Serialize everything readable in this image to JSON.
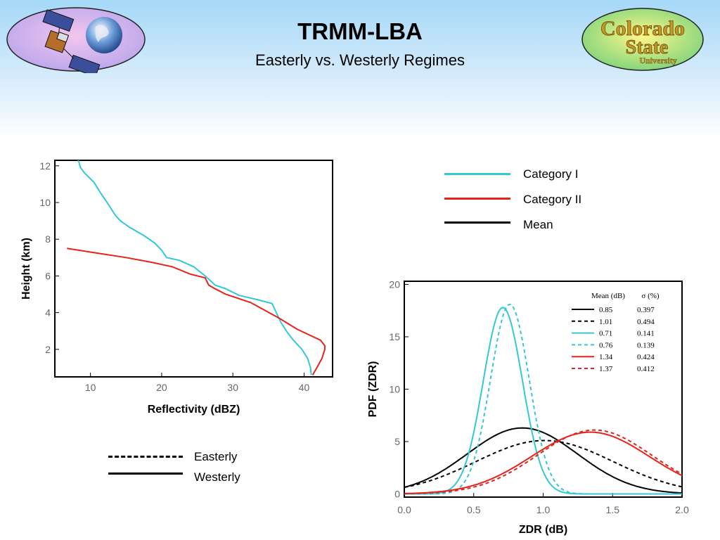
{
  "header": {
    "title": "TRMM-LBA",
    "subtitle": "Easterly vs. Westerly Regimes"
  },
  "logos": {
    "left_icon": "satellite-earth-logo",
    "right_icon": "colorado-state-logo",
    "right_text_line1": "Colorado",
    "right_text_line2": "State",
    "right_text_line3": "University"
  },
  "colors": {
    "category_i": "#33c8d6",
    "category_ii": "#e5231b",
    "mean": "#000000"
  },
  "category_legend": {
    "items": [
      {
        "label": "Category I",
        "color": "#33c8d6"
      },
      {
        "label": "Category II",
        "color": "#e5231b"
      },
      {
        "label": "Mean",
        "color": "#000000"
      }
    ]
  },
  "regime_legend": {
    "easterly": "Easterly",
    "westerly": "Westerly"
  },
  "chart_data": [
    {
      "type": "line",
      "xlabel": "Reflectivity (dBZ)",
      "ylabel": "Height (km)",
      "xlim": [
        5,
        44
      ],
      "ylim": [
        0.5,
        12.3
      ],
      "xticks": [
        10,
        20,
        30,
        40
      ],
      "yticks": [
        2,
        4,
        6,
        8,
        10,
        12
      ],
      "series": [
        {
          "color": "#33c8d6",
          "points": [
            [
              8.3,
              12.3
            ],
            [
              8.6,
              11.9
            ],
            [
              9.2,
              11.6
            ],
            [
              10.5,
              11.1
            ],
            [
              11.3,
              10.6
            ],
            [
              12.5,
              9.9
            ],
            [
              13.5,
              9.3
            ],
            [
              14.2,
              9.0
            ],
            [
              15.5,
              8.65
            ],
            [
              17.5,
              8.2
            ],
            [
              19.0,
              7.8
            ],
            [
              20.0,
              7.4
            ],
            [
              20.7,
              7.0
            ],
            [
              22.5,
              6.85
            ],
            [
              24.5,
              6.5
            ],
            [
              26.1,
              6.0
            ],
            [
              27.5,
              5.5
            ],
            [
              29.0,
              5.3
            ],
            [
              30.8,
              4.95
            ],
            [
              33.5,
              4.7
            ],
            [
              35.5,
              4.5
            ],
            [
              36.7,
              3.5
            ],
            [
              37.5,
              3.0
            ],
            [
              38.5,
              2.5
            ],
            [
              39.7,
              2.0
            ],
            [
              40.5,
              1.5
            ],
            [
              40.9,
              1.0
            ],
            [
              41.0,
              0.6
            ]
          ]
        },
        {
          "color": "#e5231b",
          "points": [
            [
              6.7,
              7.5
            ],
            [
              10,
              7.3
            ],
            [
              15,
              7.0
            ],
            [
              18.5,
              6.75
            ],
            [
              21.5,
              6.5
            ],
            [
              24.0,
              6.1
            ],
            [
              26.1,
              5.9
            ],
            [
              26.6,
              5.5
            ],
            [
              27.5,
              5.3
            ],
            [
              29.0,
              5.0
            ],
            [
              32.5,
              4.55
            ],
            [
              36.5,
              3.7
            ],
            [
              39.0,
              3.1
            ],
            [
              42.3,
              2.5
            ],
            [
              42.9,
              2.2
            ],
            [
              42.9,
              2.0
            ],
            [
              42.5,
              1.5
            ],
            [
              41.8,
              1.0
            ],
            [
              41.2,
              0.6
            ]
          ]
        }
      ]
    },
    {
      "type": "line",
      "xlabel": "ZDR (dB)",
      "ylabel": "PDF (ZDR)",
      "xlim": [
        0.0,
        2.0
      ],
      "ylim": [
        -0.3,
        20.3
      ],
      "xticks": [
        "0.0",
        "0.5",
        "1.0",
        "1.5",
        "2.0"
      ],
      "yticks": [
        "0",
        "5",
        "10",
        "15",
        "20"
      ],
      "table_header": [
        "Mean (dB)",
        "σ (%)"
      ],
      "series": [
        {
          "mean": "0.85",
          "sigma": "0.397",
          "color": "#000000",
          "dash": false,
          "peak": 6.3
        },
        {
          "mean": "1.01",
          "sigma": "0.494",
          "color": "#000000",
          "dash": true,
          "peak": 5.1
        },
        {
          "mean": "0.71",
          "sigma": "0.141",
          "color": "#33c8d6",
          "dash": false,
          "peak": 17.8
        },
        {
          "mean": "0.76",
          "sigma": "0.139",
          "color": "#33c8d6",
          "dash": true,
          "peak": 18.1
        },
        {
          "mean": "1.34",
          "sigma": "0.424",
          "color": "#e5231b",
          "dash": false,
          "peak": 5.9
        },
        {
          "mean": "1.37",
          "sigma": "0.412",
          "color": "#e5231b",
          "dash": true,
          "peak": 6.1
        }
      ]
    }
  ]
}
